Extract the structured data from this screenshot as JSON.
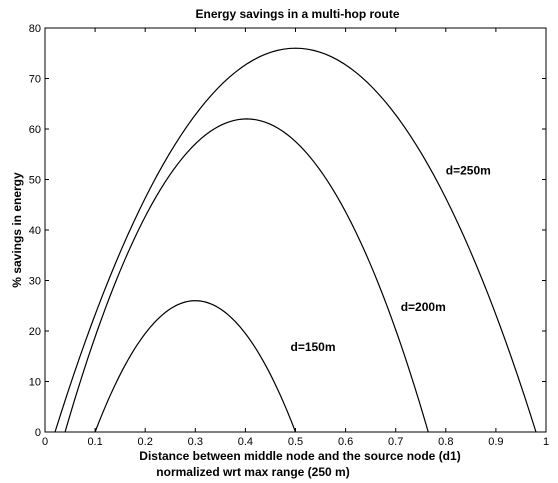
{
  "chart_data": {
    "type": "line",
    "title": "Energy savings in a multi-hop route",
    "xlabel": "Distance between middle node and the source node (d1)",
    "xlabel2": "normalized wrt max range (250 m)",
    "ylabel": "% savings in energy",
    "xlim": [
      0,
      1
    ],
    "ylim": [
      0,
      80
    ],
    "xticks": [
      "0",
      "0.1",
      "0.2",
      "0.3",
      "0.4",
      "0.5",
      "0.6",
      "0.7",
      "0.8",
      "0.9",
      "1"
    ],
    "yticks": [
      "0",
      "10",
      "20",
      "30",
      "40",
      "50",
      "60",
      "70",
      "80"
    ],
    "grid": false,
    "series": [
      {
        "name": "d=150m",
        "x": [
          0.1,
          0.15,
          0.2,
          0.25,
          0.3,
          0.35,
          0.4,
          0.45,
          0.5
        ],
        "y": [
          0,
          14,
          22,
          25,
          26,
          25,
          22,
          14,
          0
        ]
      },
      {
        "name": "d=200m",
        "x": [
          0.04,
          0.1,
          0.2,
          0.3,
          0.4,
          0.5,
          0.6,
          0.7,
          0.765
        ],
        "y": [
          0,
          22,
          44,
          57,
          62,
          57,
          44,
          22,
          0
        ]
      },
      {
        "name": "d=250m",
        "x": [
          0.02,
          0.1,
          0.2,
          0.3,
          0.4,
          0.5,
          0.6,
          0.7,
          0.8,
          0.9,
          0.98
        ],
        "y": [
          0,
          26,
          50,
          66,
          74,
          76,
          74,
          66,
          50,
          26,
          0
        ]
      }
    ],
    "annotations": [
      {
        "text": "d=250m",
        "x": 0.8,
        "y": 51
      },
      {
        "text": "d=200m",
        "x": 0.71,
        "y": 24
      },
      {
        "text": "d=150m",
        "x": 0.49,
        "y": 16
      }
    ]
  }
}
